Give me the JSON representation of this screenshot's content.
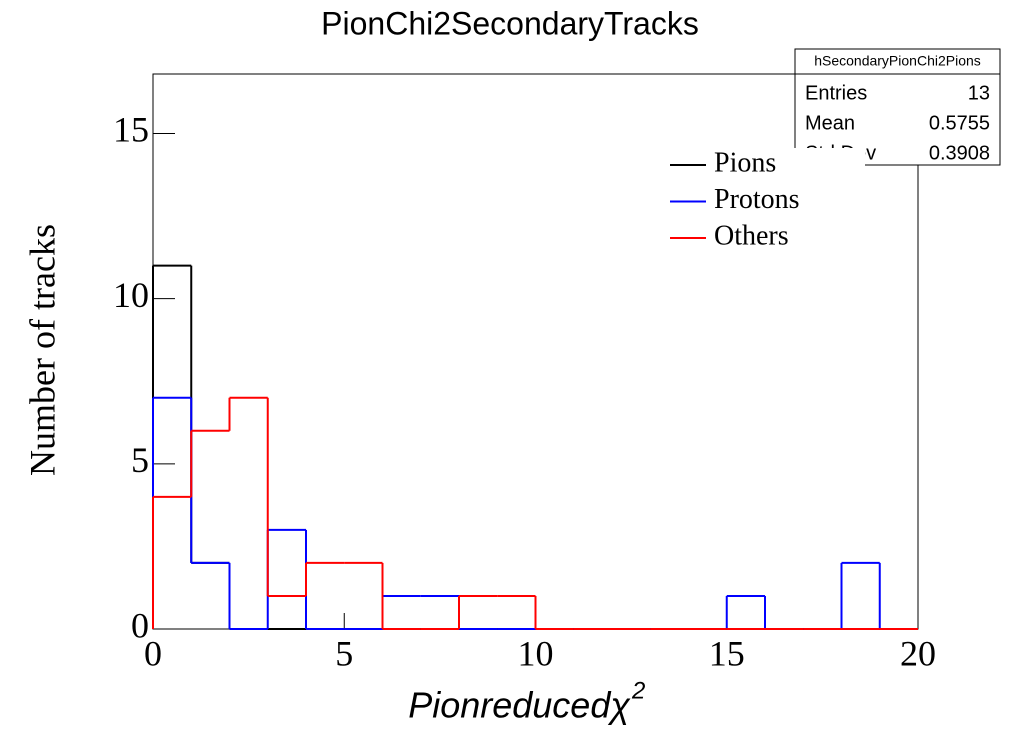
{
  "chart_data": {
    "type": "histogram",
    "title": "PionChi2SecondaryTracks",
    "x_label": "Pionreducedχ",
    "x_label_superscript": "2",
    "y_label": "Number of tracks",
    "bins": [
      0,
      1,
      2,
      3,
      4,
      5,
      6,
      7,
      8,
      9,
      10,
      11,
      12,
      13,
      14,
      15,
      16,
      17,
      18,
      19,
      20
    ],
    "series": [
      {
        "name": "Pions",
        "color": "#000000",
        "values": [
          11,
          2,
          0,
          0,
          0,
          0,
          0,
          0,
          0,
          0,
          0,
          0,
          0,
          0,
          0,
          0,
          0,
          0,
          0,
          0
        ]
      },
      {
        "name": "Protons",
        "color": "#0000ff",
        "values": [
          7,
          2,
          0,
          3,
          0,
          0,
          1,
          1,
          0,
          0,
          0,
          0,
          0,
          0,
          0,
          1,
          0,
          0,
          2,
          0
        ]
      },
      {
        "name": "Others",
        "color": "#ff0000",
        "values": [
          4,
          6,
          7,
          1,
          2,
          2,
          0,
          0,
          1,
          1,
          0,
          0,
          0,
          0,
          0,
          0,
          0,
          0,
          0,
          0
        ]
      }
    ],
    "xlim": [
      0,
      20
    ],
    "xticks": [
      0,
      5,
      10,
      15,
      20
    ],
    "ylim": [
      0,
      16.8
    ],
    "yticks": [
      0,
      5,
      10,
      15
    ],
    "stats_box": {
      "title": "hSecondaryPionChi2Pions",
      "rows": [
        {
          "label": "Entries",
          "value": 13
        },
        {
          "label": "Mean",
          "value": 0.5755
        },
        {
          "label": "Std Dev",
          "value": 0.3908
        }
      ]
    }
  }
}
